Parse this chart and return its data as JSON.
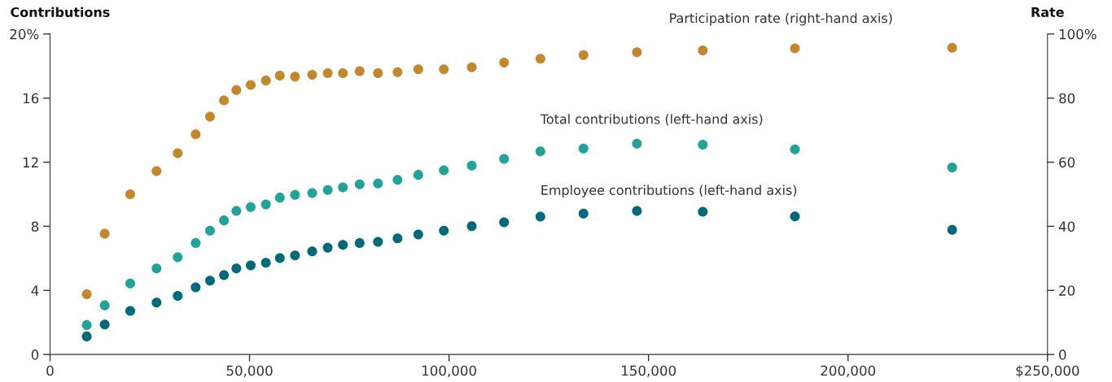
{
  "chart_data": {
    "type": "scatter",
    "ylabel": "Contributions",
    "y2label": "Rate",
    "x": [
      9200,
      13700,
      20100,
      26700,
      32000,
      36500,
      40100,
      43600,
      46700,
      50300,
      54100,
      57600,
      61400,
      65700,
      69600,
      73400,
      77600,
      82200,
      87100,
      92300,
      98700,
      105700,
      113800,
      122900,
      133700,
      147100,
      163600,
      186700,
      226100
    ],
    "series": [
      {
        "name": "Participation rate (right-hand axis)",
        "color": "#c4882c",
        "axis": "y2",
        "values": [
          18.8,
          37.7,
          50.0,
          57.2,
          62.8,
          68.7,
          74.2,
          79.3,
          82.5,
          84.1,
          85.5,
          87.0,
          86.7,
          87.3,
          87.8,
          87.8,
          88.4,
          87.8,
          88.1,
          89.0,
          89.0,
          89.6,
          91.1,
          92.3,
          93.4,
          94.3,
          94.9,
          95.5,
          95.7
        ]
      },
      {
        "name": "Total contributions (left-hand axis)",
        "color": "#22a39a",
        "values": [
          1.84,
          3.07,
          4.43,
          5.37,
          6.07,
          6.96,
          7.73,
          8.37,
          8.96,
          9.2,
          9.37,
          9.79,
          9.96,
          10.08,
          10.26,
          10.43,
          10.62,
          10.67,
          10.9,
          11.21,
          11.5,
          11.79,
          12.21,
          12.68,
          12.85,
          13.16,
          13.09,
          12.8,
          11.67
        ]
      },
      {
        "name": "Employee contributions (left-hand axis)",
        "color": "#006a7a",
        "values": [
          1.13,
          1.87,
          2.72,
          3.24,
          3.66,
          4.19,
          4.61,
          4.95,
          5.37,
          5.56,
          5.73,
          6.02,
          6.18,
          6.44,
          6.66,
          6.84,
          6.96,
          7.03,
          7.25,
          7.49,
          7.73,
          8.01,
          8.25,
          8.6,
          8.79,
          8.96,
          8.91,
          8.62,
          7.78
        ]
      }
    ],
    "xlim": [
      0,
      250000
    ],
    "xticks": [
      0,
      {
        "value": 50000,
        "label": "50,000"
      },
      {
        "value": 100000,
        "label": "100,000"
      },
      {
        "value": 150000,
        "label": "150,000"
      },
      {
        "value": 200000,
        "label": "200,000"
      },
      {
        "value": 250000,
        "label": "$250,000"
      }
    ],
    "ylim": [
      0,
      20
    ],
    "yticks": [
      0,
      4,
      8,
      12,
      16,
      {
        "value": 20,
        "label": "20%"
      }
    ],
    "y2lim": [
      0,
      100
    ],
    "y2ticks": [
      0,
      20,
      40,
      60,
      80,
      {
        "value": 100,
        "label": "100%"
      }
    ],
    "marker": "circle",
    "grid": false,
    "legend": false
  }
}
